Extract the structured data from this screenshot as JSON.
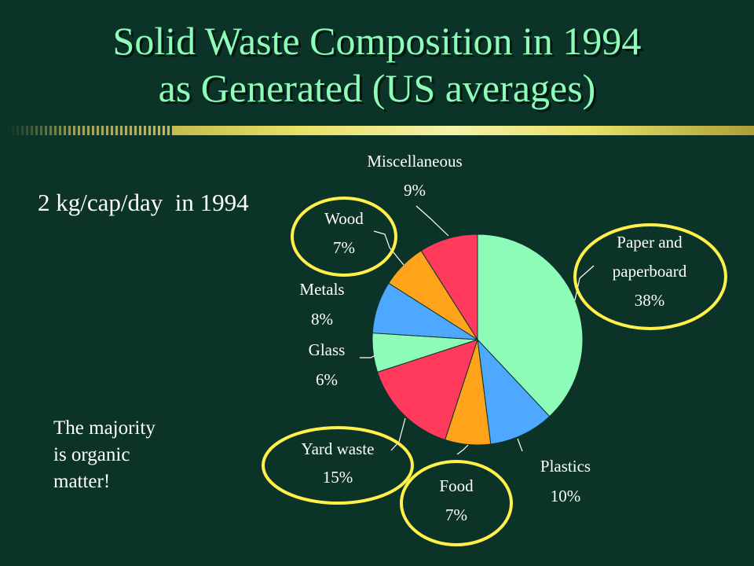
{
  "slide": {
    "title_line1": "Solid Waste Composition in 1994",
    "title_line2": "as Generated (US averages)",
    "rate_text": "2 kg/cap/day  in 1994",
    "note_text": "The majority\nis organic\nmatter!"
  },
  "colors": {
    "background": "#0b3328",
    "title": "#8cfcb8",
    "highlight_ellipse": "#fff04a",
    "leader_line": "#ffffff"
  },
  "chart_data": {
    "type": "pie",
    "title": "",
    "start": "12 o'clock, clockwise",
    "slices": [
      {
        "label_lines": [
          "Paper and",
          "paperboard",
          "38%"
        ],
        "category": "Paper and paperboard",
        "value": 38,
        "color": "#8cfcb8",
        "highlighted": true
      },
      {
        "label_lines": [
          "Plastics",
          "10%"
        ],
        "category": "Plastics",
        "value": 10,
        "color": "#4ea8ff",
        "highlighted": false
      },
      {
        "label_lines": [
          "Food",
          "7%"
        ],
        "category": "Food",
        "value": 7,
        "color": "#ffa31a",
        "highlighted": true
      },
      {
        "label_lines": [
          "Yard waste",
          "15%"
        ],
        "category": "Yard waste",
        "value": 15,
        "color": "#ff3a5c",
        "highlighted": true
      },
      {
        "label_lines": [
          "Glass",
          "6%"
        ],
        "category": "Glass",
        "value": 6,
        "color": "#8cfcb8",
        "highlighted": false
      },
      {
        "label_lines": [
          "Metals",
          "8%"
        ],
        "category": "Metals",
        "value": 8,
        "color": "#4ea8ff",
        "highlighted": false
      },
      {
        "label_lines": [
          "Wood",
          "7%"
        ],
        "category": "Wood",
        "value": 7,
        "color": "#ffa31a",
        "highlighted": true
      },
      {
        "label_lines": [
          "Miscellaneous",
          "9%"
        ],
        "category": "Miscellaneous",
        "value": 9,
        "color": "#ff3a5c",
        "highlighted": false
      }
    ]
  }
}
